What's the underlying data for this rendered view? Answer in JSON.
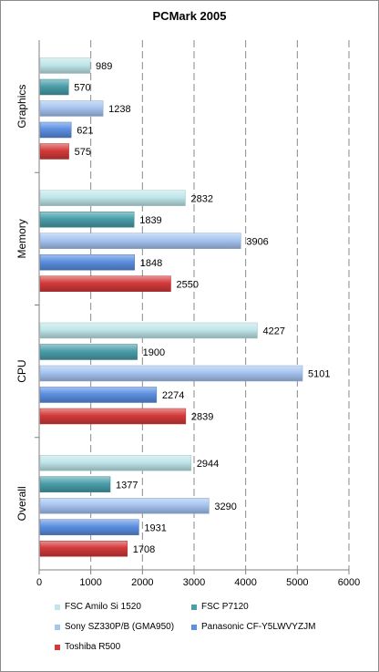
{
  "chart_data": {
    "type": "bar",
    "orientation": "horizontal",
    "title": "PCMark 2005",
    "categories": [
      "Graphics",
      "Memory",
      "CPU",
      "Overall"
    ],
    "series": [
      {
        "name": "FSC Amilo Si 1520",
        "color": "#bfe6ea",
        "values": [
          989,
          2832,
          4227,
          2944
        ]
      },
      {
        "name": "FSC P7120",
        "color": "#4a9eaa",
        "values": [
          570,
          1839,
          1900,
          1377
        ]
      },
      {
        "name": "Sony SZ330P/B (GMA950)",
        "color": "#a6c4f0",
        "values": [
          1238,
          3906,
          5101,
          3290
        ]
      },
      {
        "name": "Panasonic CF-Y5LWVYZJM",
        "color": "#5b8fe0",
        "values": [
          621,
          1848,
          2274,
          1931
        ]
      },
      {
        "name": "Toshiba R500",
        "color": "#d43a3a",
        "values": [
          575,
          2550,
          2839,
          1708
        ]
      }
    ],
    "xlim": [
      0,
      6000
    ],
    "xticks": [
      "0",
      "1000",
      "2000",
      "3000",
      "4000",
      "5000",
      "6000"
    ],
    "grid": "vertical dashed",
    "legend_position": "bottom"
  }
}
